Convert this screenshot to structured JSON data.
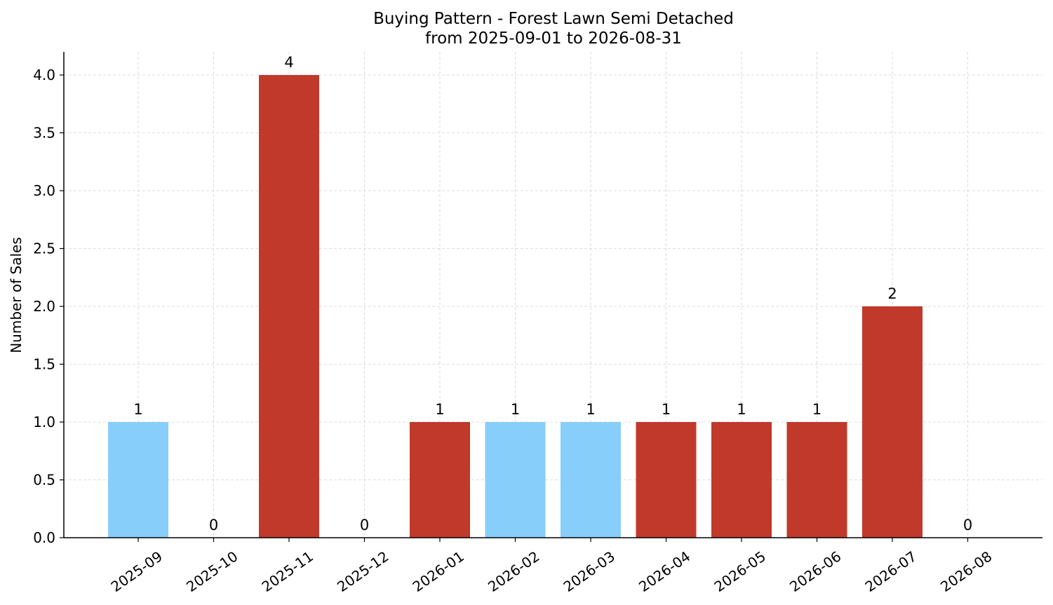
{
  "chart_data": {
    "type": "bar",
    "title": "Buying Pattern - Forest Lawn Semi Detached",
    "subtitle": "from 2025-09-01 to 2026-08-31",
    "xlabel": "",
    "ylabel": "Number of Sales",
    "ylim": [
      0,
      4.2
    ],
    "yticks": [
      "0.0",
      "0.5",
      "1.0",
      "1.5",
      "2.0",
      "2.5",
      "3.0",
      "3.5",
      "4.0"
    ],
    "grid": true,
    "legend": "none",
    "categories": [
      "2025-09",
      "2025-10",
      "2025-11",
      "2025-12",
      "2026-01",
      "2026-02",
      "2026-03",
      "2026-04",
      "2026-05",
      "2026-06",
      "2026-07",
      "2026-08"
    ],
    "values": [
      1,
      0,
      4,
      0,
      1,
      1,
      1,
      1,
      1,
      1,
      2,
      0
    ],
    "data_labels": [
      "1",
      "0",
      "4",
      "0",
      "1",
      "1",
      "1",
      "1",
      "1",
      "1",
      "2",
      "0"
    ],
    "bar_colors": [
      "#87cefa",
      "#c0392b",
      "#c0392b",
      "#c0392b",
      "#c0392b",
      "#87cefa",
      "#87cefa",
      "#c0392b",
      "#c0392b",
      "#c0392b",
      "#c0392b",
      "#c0392b"
    ]
  }
}
